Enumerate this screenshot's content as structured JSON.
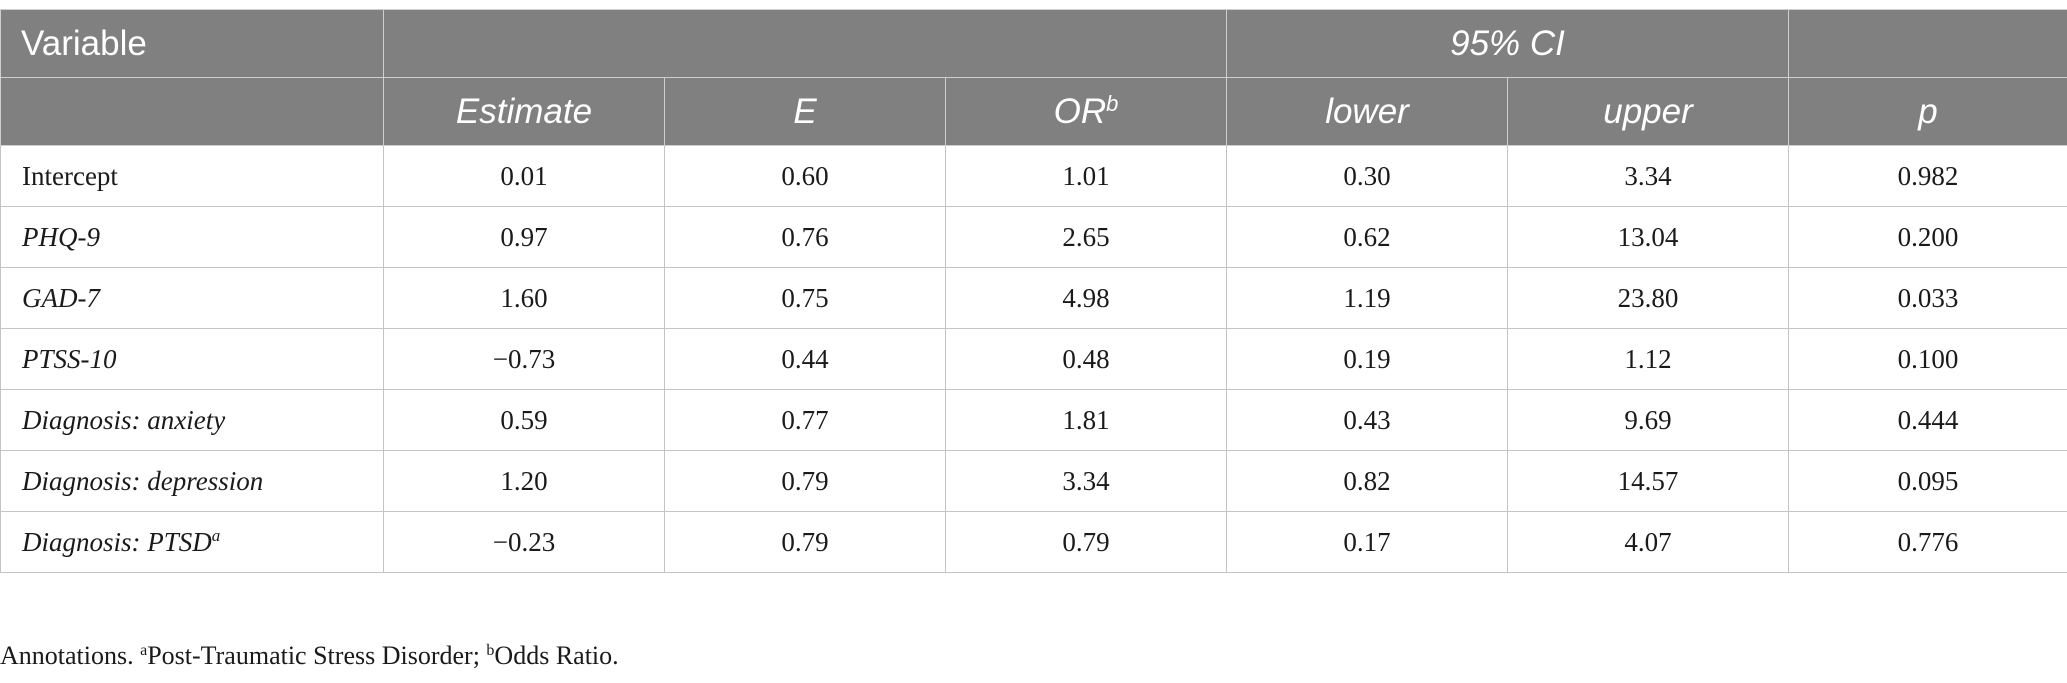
{
  "header": {
    "variable": "Variable",
    "ci_group": "95% CI",
    "estimate": "Estimate",
    "e": "E",
    "or": "OR",
    "or_sup": "b",
    "lower": "lower",
    "upper": "upper",
    "p": "p"
  },
  "rows": [
    {
      "variable": "Intercept",
      "italic": false,
      "sup": "",
      "estimate": "0.01",
      "e": "0.60",
      "or": "1.01",
      "lower": "0.30",
      "upper": "3.34",
      "p": "0.982"
    },
    {
      "variable": "PHQ-9",
      "italic": true,
      "sup": "",
      "estimate": "0.97",
      "e": "0.76",
      "or": "2.65",
      "lower": "0.62",
      "upper": "13.04",
      "p": "0.200"
    },
    {
      "variable": "GAD-7",
      "italic": true,
      "sup": "",
      "estimate": "1.60",
      "e": "0.75",
      "or": "4.98",
      "lower": "1.19",
      "upper": "23.80",
      "p": "0.033"
    },
    {
      "variable": "PTSS-10",
      "italic": true,
      "sup": "",
      "estimate": "−0.73",
      "e": "0.44",
      "or": "0.48",
      "lower": "0.19",
      "upper": "1.12",
      "p": "0.100"
    },
    {
      "variable": "Diagnosis: anxiety",
      "italic": true,
      "sup": "",
      "estimate": "0.59",
      "e": "0.77",
      "or": "1.81",
      "lower": "0.43",
      "upper": "9.69",
      "p": "0.444"
    },
    {
      "variable": "Diagnosis: depression",
      "italic": true,
      "sup": "",
      "estimate": "1.20",
      "e": "0.79",
      "or": "3.34",
      "lower": "0.82",
      "upper": "14.57",
      "p": "0.095"
    },
    {
      "variable": "Diagnosis: PTSD",
      "italic": true,
      "sup": "a",
      "estimate": "−0.23",
      "e": "0.79",
      "or": "0.79",
      "lower": "0.17",
      "upper": "4.07",
      "p": "0.776"
    }
  ],
  "note": {
    "prefix": "Annotations. ",
    "sup_a": "a",
    "text_a": "Post-Traumatic Stress Disorder; ",
    "sup_b": "b",
    "text_b": "Odds Ratio."
  }
}
